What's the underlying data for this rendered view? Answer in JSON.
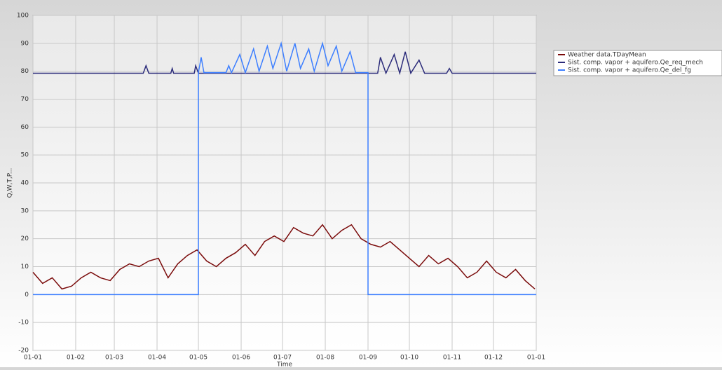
{
  "chart_data": {
    "type": "line",
    "y_label": "Q,W,T,P...",
    "x_label": "Time",
    "xlim": [
      0,
      365
    ],
    "xticks": [
      {
        "value": 0,
        "label": "01-01"
      },
      {
        "value": 31,
        "label": "01-02"
      },
      {
        "value": 59,
        "label": "01-03"
      },
      {
        "value": 90,
        "label": "01-04"
      },
      {
        "value": 120,
        "label": "01-05"
      },
      {
        "value": 151,
        "label": "01-06"
      },
      {
        "value": 181,
        "label": "01-07"
      },
      {
        "value": 212,
        "label": "01-08"
      },
      {
        "value": 243,
        "label": "01-09"
      },
      {
        "value": 273,
        "label": "01-10"
      },
      {
        "value": 304,
        "label": "01-11"
      },
      {
        "value": 334,
        "label": "01-12"
      },
      {
        "value": 365,
        "label": "01-01"
      }
    ],
    "ylim": [
      -20,
      100
    ],
    "yticks": [
      -20,
      -10,
      0,
      10,
      20,
      30,
      40,
      50,
      60,
      70,
      80,
      90,
      100
    ],
    "grid": true,
    "legend": "upper right",
    "series": [
      {
        "name": "Weather data.TDayMean",
        "color": "#7a0a0a",
        "x": [
          0,
          7,
          14,
          21,
          28,
          35,
          42,
          49,
          56,
          63,
          70,
          77,
          84,
          91,
          98,
          105,
          112,
          119,
          126,
          133,
          140,
          147,
          154,
          161,
          168,
          175,
          182,
          189,
          196,
          203,
          210,
          217,
          224,
          231,
          238,
          245,
          252,
          259,
          266,
          273,
          280,
          287,
          294,
          301,
          308,
          315,
          322,
          329,
          336,
          343,
          350,
          357,
          364
        ],
        "values": [
          8,
          4,
          6,
          2,
          3,
          6,
          8,
          6,
          5,
          9,
          11,
          10,
          12,
          13,
          6,
          11,
          14,
          16,
          12,
          10,
          13,
          15,
          18,
          14,
          19,
          21,
          19,
          24,
          22,
          21,
          25,
          20,
          23,
          25,
          20,
          18,
          17,
          19,
          16,
          13,
          10,
          14,
          11,
          13,
          10,
          6,
          8,
          12,
          8,
          6,
          9,
          5,
          2
        ]
      },
      {
        "name": "Sist. comp. vapor + aquifero.Qe_req_mech",
        "color": "#2b2b7a",
        "x": [
          0,
          80,
          82,
          84,
          100,
          101,
          102,
          117,
          118,
          120,
          250,
          252,
          256,
          262,
          266,
          270,
          274,
          280,
          284,
          300,
          302,
          304,
          365
        ],
        "values": [
          79.3,
          79.3,
          82,
          79.3,
          79.3,
          81,
          79.3,
          79.3,
          82,
          79.3,
          79.3,
          85,
          79.3,
          86,
          79.3,
          87,
          79.3,
          84,
          79.3,
          79.3,
          81,
          79.3,
          79.3
        ]
      },
      {
        "name": "Sist. comp. vapor + aquifero.Qe_del_fg",
        "color": "#3d7fff",
        "x": [
          0,
          120,
          120,
          122,
          124,
          140,
          142,
          144,
          150,
          154,
          160,
          164,
          170,
          174,
          180,
          184,
          190,
          194,
          200,
          204,
          210,
          214,
          220,
          224,
          230,
          234,
          243,
          243,
          365
        ],
        "values": [
          0,
          0,
          79.5,
          85,
          79.5,
          79.5,
          82,
          79.5,
          86,
          79.5,
          88,
          80,
          89,
          81,
          90,
          80,
          90,
          81,
          88,
          80,
          90,
          82,
          89,
          80,
          87,
          79.5,
          79.5,
          0,
          0
        ]
      }
    ]
  }
}
